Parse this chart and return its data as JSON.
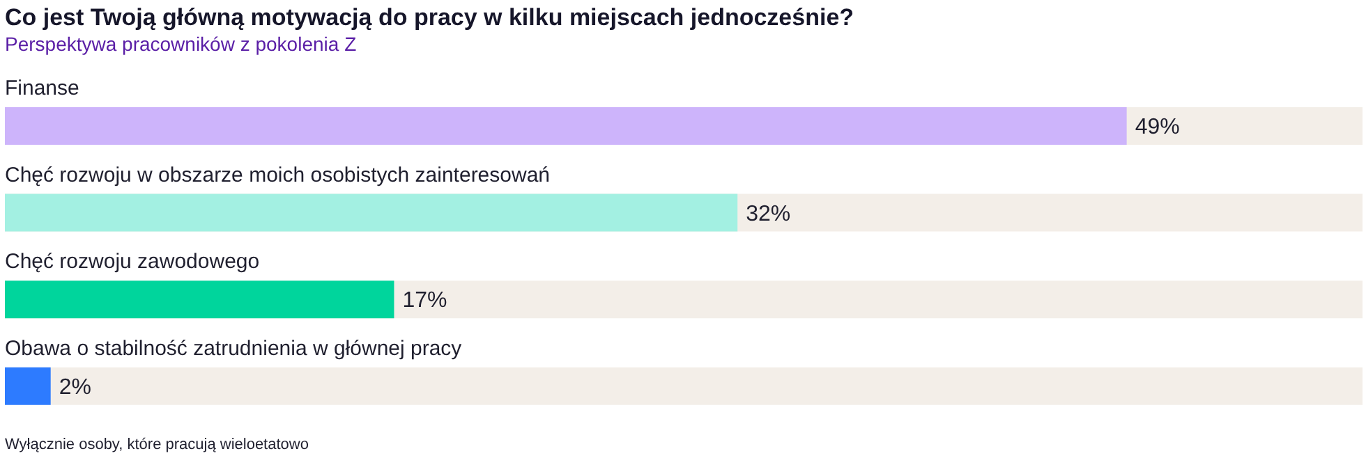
{
  "chart_data": {
    "type": "bar",
    "orientation": "horizontal",
    "title": "Co jest Twoją główną motywacją do pracy w kilku miejscach jednocześnie?",
    "subtitle": "Perspektywa pracowników z pokolenia Z",
    "categories": [
      "Finanse",
      "Chęć rozwoju w obszarze moich osobistych zainteresowań",
      "Chęć rozwoju zawodowego",
      "Obawa o stabilność zatrudnienia w głównej pracy"
    ],
    "values": [
      49,
      32,
      17,
      2
    ],
    "colors": [
      "#cdb4fb",
      "#a3f0e2",
      "#00d59c",
      "#2d7bff"
    ],
    "xlim": [
      0,
      59.3
    ],
    "data_labels": true,
    "value_labels": [
      "49%",
      "32%",
      "17%",
      "2%"
    ],
    "annotations": [
      "Wyłącznie osoby, które pracują wieloetatowo"
    ]
  }
}
